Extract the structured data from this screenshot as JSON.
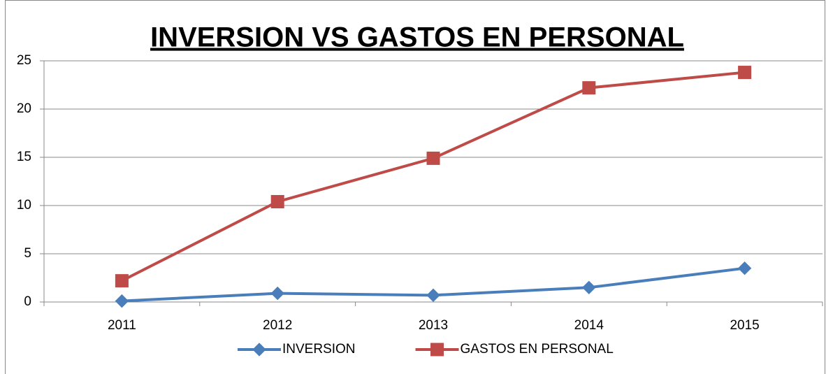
{
  "chart_data": {
    "type": "line",
    "title": "INVERSION VS GASTOS EN PERSONAL",
    "categories": [
      "2011",
      "2012",
      "2013",
      "2014",
      "2015"
    ],
    "series": [
      {
        "name": "INVERSION",
        "color": "#4a7ebb",
        "marker": "diamond",
        "values": [
          0.1,
          0.9,
          0.7,
          1.5,
          3.5
        ]
      },
      {
        "name": "GASTOS EN PERSONAL",
        "color": "#be4b48",
        "marker": "square",
        "values": [
          2.2,
          10.4,
          14.9,
          22.2,
          23.8
        ]
      }
    ],
    "ylim": [
      0,
      25
    ],
    "yticks": [
      0,
      5,
      10,
      15,
      20,
      25
    ],
    "grid": true,
    "legend": "bottom"
  }
}
